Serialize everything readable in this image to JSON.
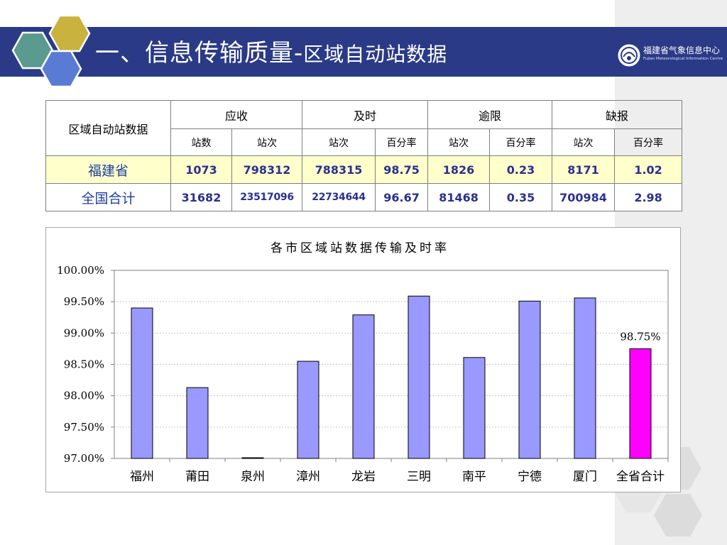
{
  "header": {
    "title_main": "一、信息传输质量-",
    "title_sub": "区域自动站数据",
    "org_name_cn": "福建省气象信息中心",
    "org_name_en": "Fujian Meteorological Information Centre"
  },
  "table": {
    "corner_label": "区域自动站数据",
    "groups": [
      "应收",
      "及时",
      "逾限",
      "缺报"
    ],
    "subheaders": [
      "站数",
      "站次",
      "站次",
      "百分率",
      "站次",
      "百分率",
      "站次",
      "百分率"
    ],
    "rows": [
      {
        "label": "福建省",
        "values": [
          "1073",
          "798312",
          "788315",
          "98.75",
          "1826",
          "0.23",
          "8171",
          "1.02"
        ]
      },
      {
        "label": "全国合计",
        "values": [
          "31682",
          "23517096",
          "22734644",
          "96.67",
          "81468",
          "0.35",
          "700984",
          "2.98"
        ]
      }
    ]
  },
  "chart_data": {
    "type": "bar",
    "title": "各市区域站数据传输及时率",
    "categories": [
      "福州",
      "莆田",
      "泉州",
      "漳州",
      "龙岩",
      "三明",
      "南平",
      "宁德",
      "厦门",
      "全省合计"
    ],
    "values": [
      99.4,
      98.13,
      97.01,
      98.55,
      99.29,
      99.59,
      98.61,
      99.51,
      99.56,
      98.75
    ],
    "ylim": [
      97.0,
      100.0
    ],
    "y_ticks": [
      "97.00%",
      "97.50%",
      "98.00%",
      "98.50%",
      "99.00%",
      "99.50%",
      "100.00%"
    ],
    "y_tick_values": [
      97.0,
      97.5,
      98.0,
      98.5,
      99.0,
      99.5,
      100.0
    ],
    "annotation": "98.75%",
    "grid": true,
    "colors": {
      "default_bar": "#9999ff",
      "highlight_bar": "#ff00ff"
    },
    "highlight_index": 9
  }
}
